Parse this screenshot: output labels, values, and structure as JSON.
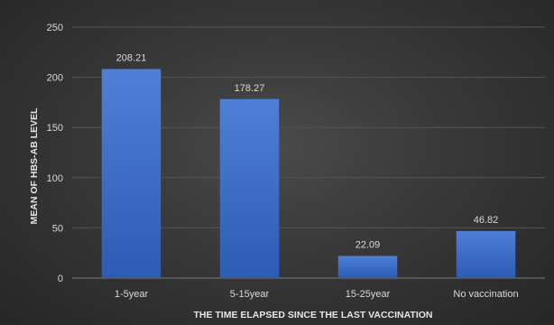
{
  "chart_data": {
    "type": "bar",
    "title": "",
    "xlabel": "THE TIME ELAPSED SINCE THE LAST  VACCINATION",
    "ylabel": "MEAN OF HBS-AB LEVEL",
    "categories": [
      "1-5year",
      "5-15year",
      "15-25year",
      "No vaccination"
    ],
    "values": [
      208.21,
      178.27,
      22.09,
      46.82
    ],
    "data_labels": [
      "208.21",
      "178.27",
      "22.09",
      "46.82"
    ],
    "ylim": [
      0,
      250
    ],
    "yticks": [
      0,
      50,
      100,
      150,
      200,
      250
    ],
    "grid": true,
    "legend": "none",
    "colors": {
      "bar_top": "#4f7fd6",
      "bar_bottom": "#2d5bb5",
      "grid": "#555555",
      "axis": "#7a7a7a",
      "text": "#d9d9d9"
    }
  }
}
